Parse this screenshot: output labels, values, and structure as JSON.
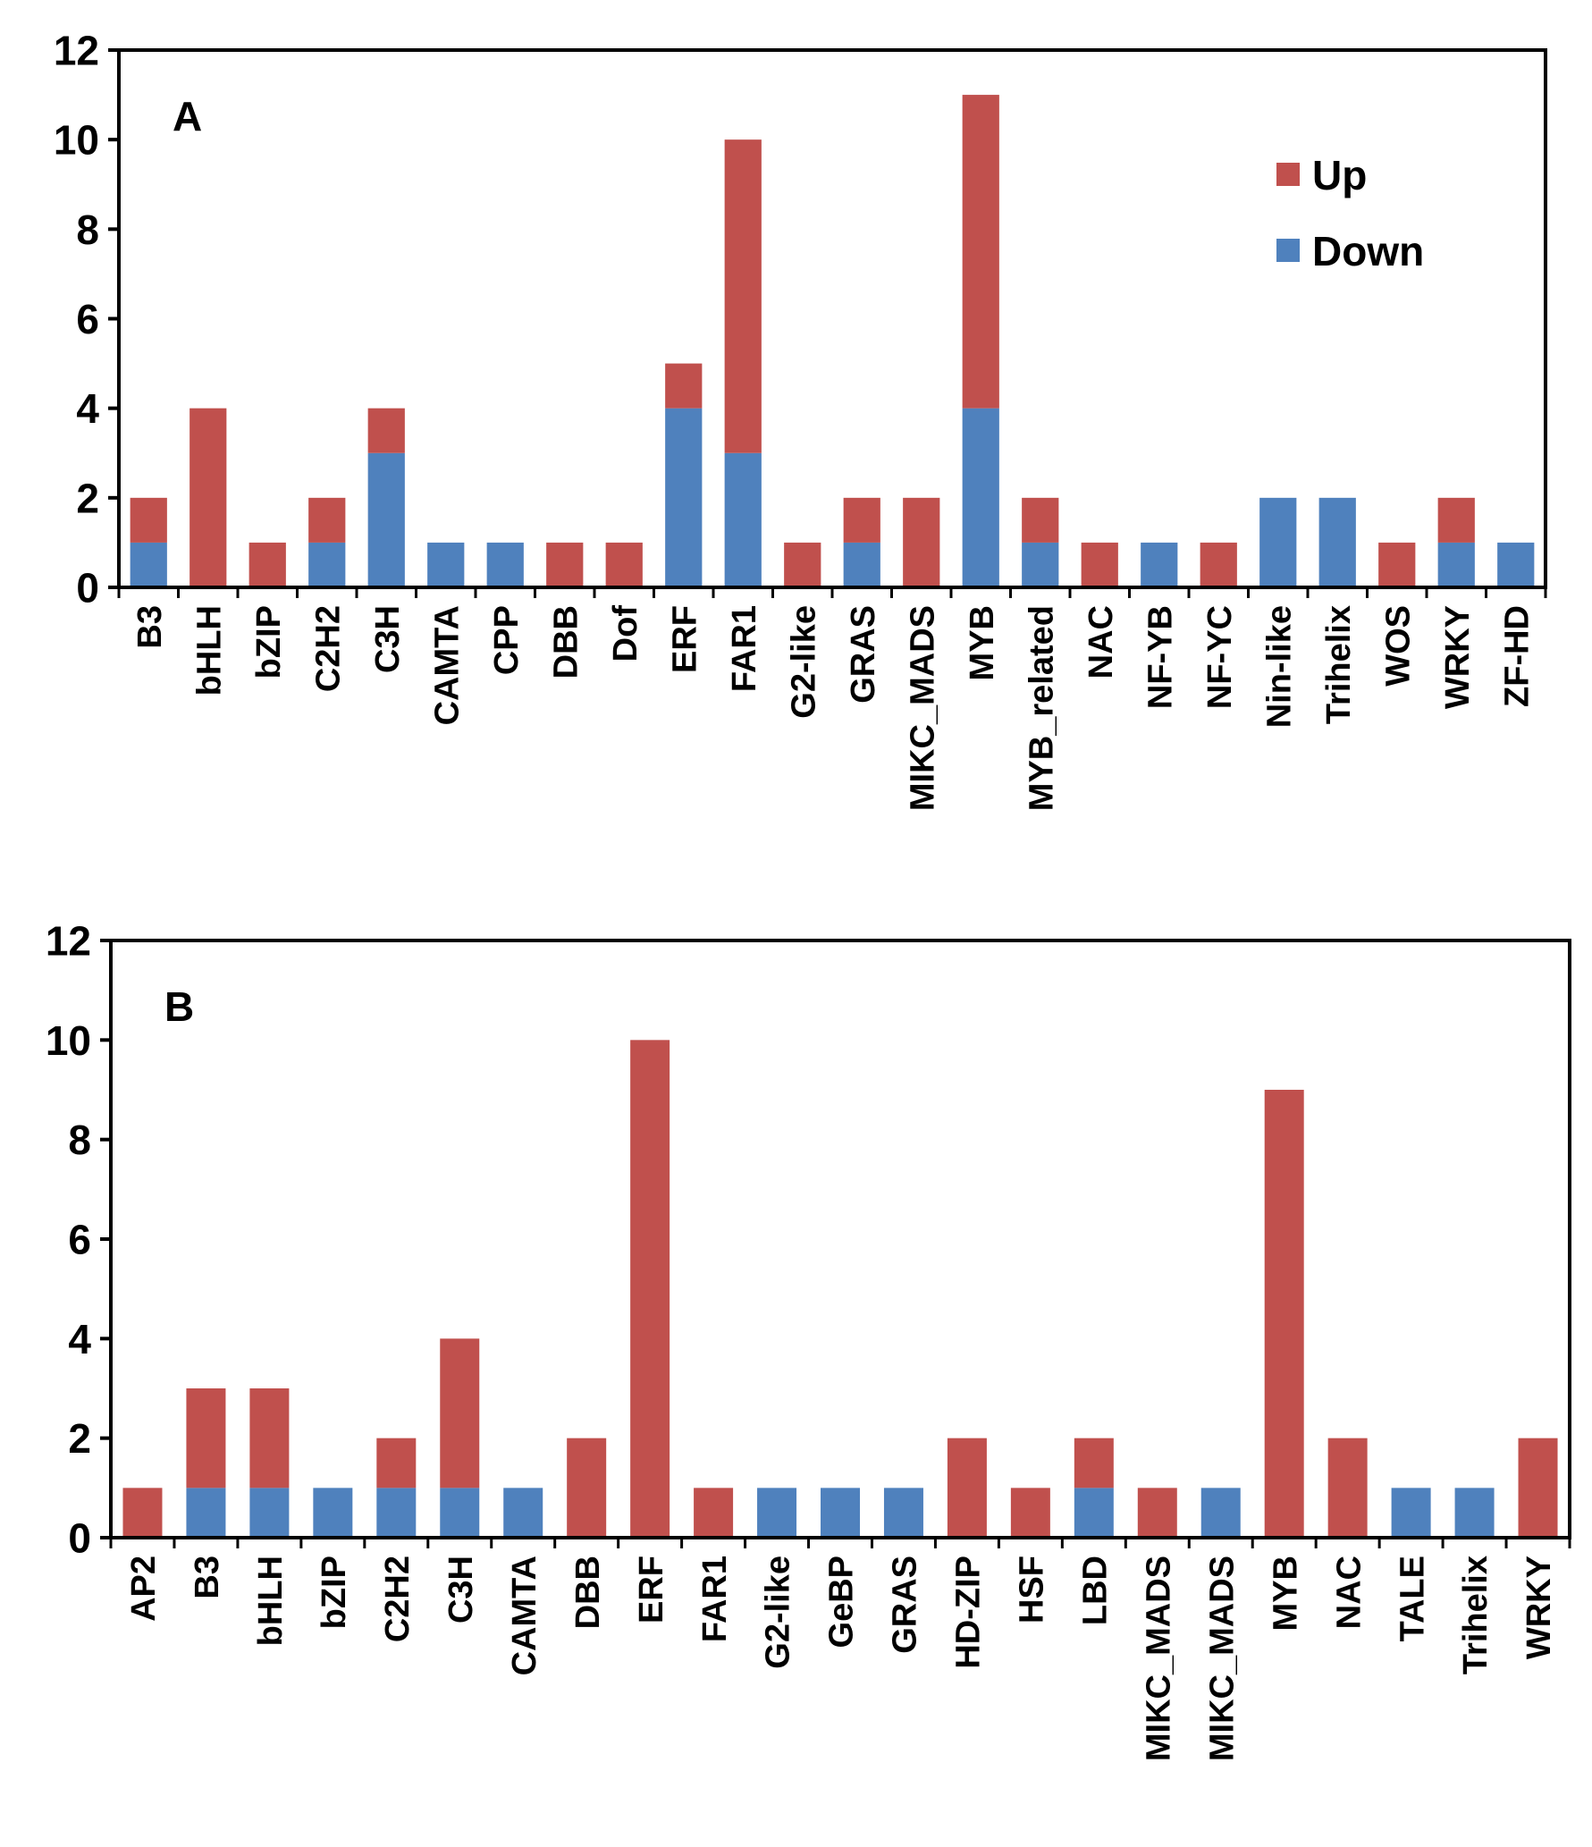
{
  "colors": {
    "up": "#c0504d",
    "down": "#4f81bd"
  },
  "chart_data": [
    {
      "type": "bar",
      "stacked": true,
      "panel_label": "A",
      "ylim": [
        0,
        12
      ],
      "yticks": [
        "0",
        "2",
        "4",
        "6",
        "8",
        "10",
        "12"
      ],
      "legend": {
        "placement": "top-right",
        "entries": [
          "Up",
          "Down"
        ]
      },
      "categories": [
        "B3",
        "bHLH",
        "bZIP",
        "C2H2",
        "C3H",
        "CAMTA",
        "CPP",
        "DBB",
        "Dof",
        "ERF",
        "FAR1",
        "G2-like",
        "GRAS",
        "MIKC_MADS",
        "MYB",
        "MYB_related",
        "NAC",
        "NF-YB",
        "NF-YC",
        "Nin-like",
        "Trihelix",
        "WOS",
        "WRKY",
        "ZF-HD"
      ],
      "series": [
        {
          "name": "Down",
          "values": [
            1,
            0,
            0,
            1,
            3,
            1,
            1,
            0,
            0,
            4,
            3,
            0,
            1,
            0,
            4,
            1,
            0,
            1,
            0,
            2,
            2,
            0,
            1,
            1
          ]
        },
        {
          "name": "Up",
          "values": [
            1,
            4,
            1,
            1,
            1,
            0,
            0,
            1,
            1,
            1,
            7,
            1,
            1,
            2,
            7,
            1,
            1,
            0,
            1,
            0,
            0,
            1,
            1,
            0
          ]
        }
      ]
    },
    {
      "type": "bar",
      "stacked": true,
      "panel_label": "B",
      "ylim": [
        0,
        12
      ],
      "yticks": [
        "0",
        "2",
        "4",
        "6",
        "8",
        "10",
        "12"
      ],
      "categories": [
        "AP2",
        "B3",
        "bHLH",
        "bZIP",
        "C2H2",
        "C3H",
        "CAMTA",
        "DBB",
        "ERF",
        "FAR1",
        "G2-like",
        "GeBP",
        "GRAS",
        "HD-ZIP",
        "HSF",
        "LBD",
        "MIKC_MADS",
        "MIKC_MADS",
        "MYB",
        "NAC",
        "TALE",
        "Trihelix",
        "WRKY"
      ],
      "series": [
        {
          "name": "Down",
          "values": [
            0,
            1,
            1,
            1,
            1,
            1,
            1,
            0,
            0,
            0,
            1,
            1,
            1,
            0,
            0,
            1,
            0,
            1,
            0,
            0,
            1,
            1,
            0
          ]
        },
        {
          "name": "Up",
          "values": [
            1,
            2,
            2,
            0,
            1,
            3,
            0,
            2,
            10,
            1,
            0,
            0,
            0,
            2,
            1,
            1,
            1,
            0,
            9,
            2,
            0,
            0,
            2
          ]
        }
      ]
    }
  ]
}
